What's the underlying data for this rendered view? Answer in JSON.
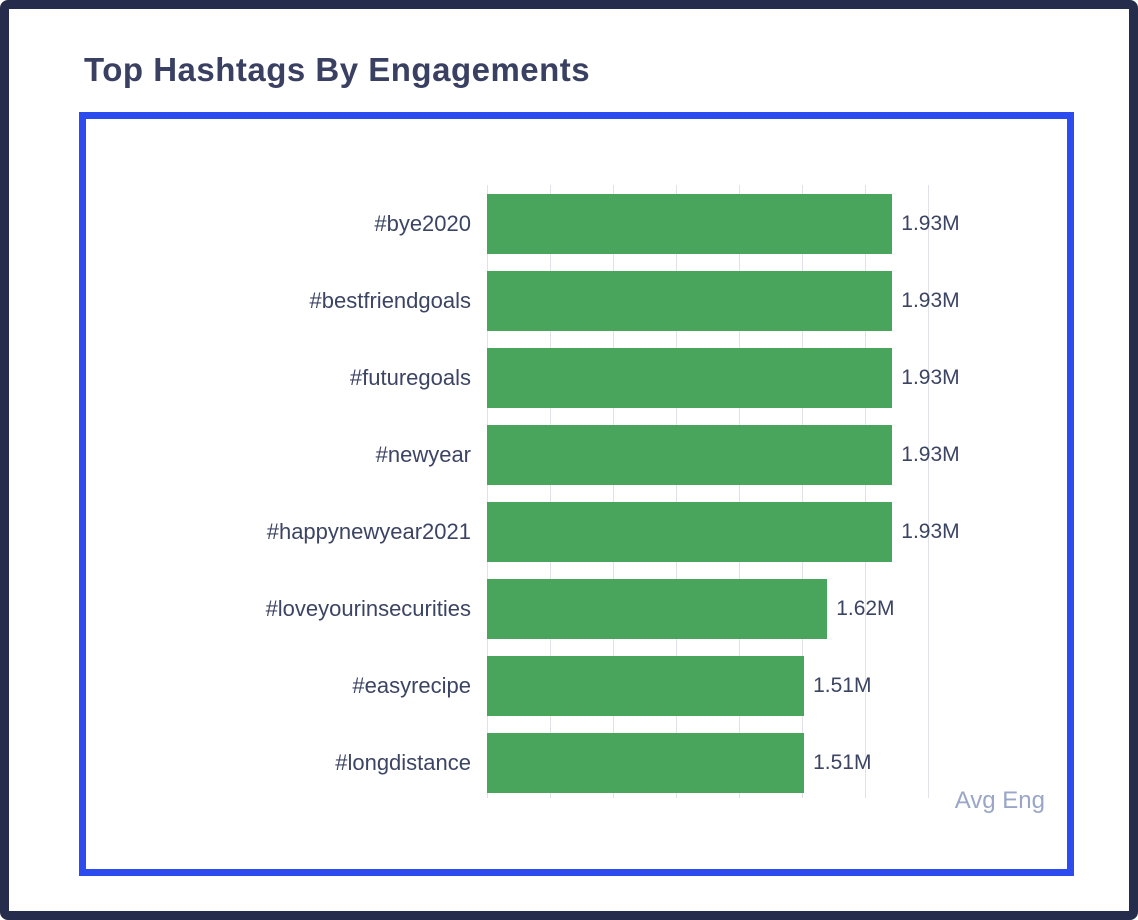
{
  "page": {
    "title": "Top Hashtags By Engagements"
  },
  "chart_data": {
    "type": "bar",
    "orientation": "horizontal",
    "title": "Top Hashtags By Engagements",
    "categories": [
      "#bye2020",
      "#bestfriendgoals",
      "#futuregoals",
      "#newyear",
      "#happynewyear2021",
      "#loveyourinsecurities",
      "#easyrecipe",
      "#longdistance"
    ],
    "values": [
      1.93,
      1.93,
      1.93,
      1.93,
      1.93,
      1.62,
      1.51,
      1.51
    ],
    "value_labels": [
      "1.93M",
      "1.93M",
      "1.93M",
      "1.93M",
      "1.93M",
      "1.62M",
      "1.51M",
      "1.51M"
    ],
    "unit": "M",
    "xlabel": "Avg Eng",
    "ylabel": "",
    "xlim": [
      0,
      2.1
    ],
    "gridline_interval": 0.3,
    "grid": true,
    "legend": false,
    "bar_color": "#4aa55c"
  },
  "colors": {
    "outer_border": "#262d4c",
    "panel_border": "#2d4cf0",
    "title": "#3a4062",
    "text": "#3c4464",
    "axis_title": "#9aa6c7",
    "gridline": "#e1e2e7",
    "background": "#ffffff"
  }
}
